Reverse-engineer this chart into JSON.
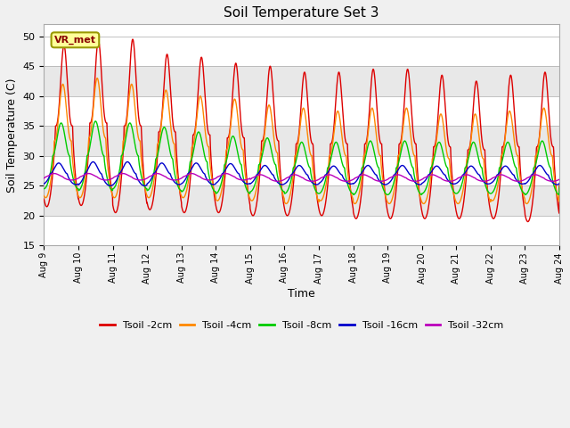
{
  "title": "Soil Temperature Set 3",
  "xlabel": "Time",
  "ylabel": "Soil Temperature (C)",
  "ylim": [
    15,
    52
  ],
  "yticks": [
    15,
    20,
    25,
    30,
    35,
    40,
    45,
    50
  ],
  "background_color": "#f0f0f0",
  "plot_bg_color": "#ffffff",
  "grid_color": "#dddddd",
  "series_colors": {
    "Tsoil -2cm": "#dd0000",
    "Tsoil -4cm": "#ff8800",
    "Tsoil -8cm": "#00cc00",
    "Tsoil -16cm": "#0000cc",
    "Tsoil -32cm": "#bb00bb"
  },
  "label_box": {
    "text": "VR_met",
    "facecolor": "#ffff99",
    "edgecolor": "#999900",
    "fontsize": 8,
    "color": "#880000"
  },
  "n_points": 2000,
  "x_start": 9,
  "x_end": 24,
  "xtick_positions": [
    9,
    10,
    11,
    12,
    13,
    14,
    15,
    16,
    17,
    18,
    19,
    20,
    21,
    22,
    23,
    24
  ],
  "xtick_labels": [
    "Aug 9",
    "Aug 10",
    "Aug 11",
    "Aug 12",
    "Aug 13",
    "Aug 14",
    "Aug 15",
    "Aug 16",
    "Aug 17",
    "Aug 18",
    "Aug 19",
    "Aug 20",
    "Aug 21",
    "Aug 22",
    "Aug 23",
    "Aug 24"
  ],
  "legend_items": [
    {
      "label": "Tsoil -2cm",
      "color": "#dd0000"
    },
    {
      "label": "Tsoil -4cm",
      "color": "#ff8800"
    },
    {
      "label": "Tsoil -8cm",
      "color": "#00cc00"
    },
    {
      "label": "Tsoil -16cm",
      "color": "#0000cc"
    },
    {
      "label": "Tsoil -32cm",
      "color": "#bb00bb"
    }
  ],
  "band_colors": [
    "#ffffff",
    "#e8e8e8"
  ]
}
